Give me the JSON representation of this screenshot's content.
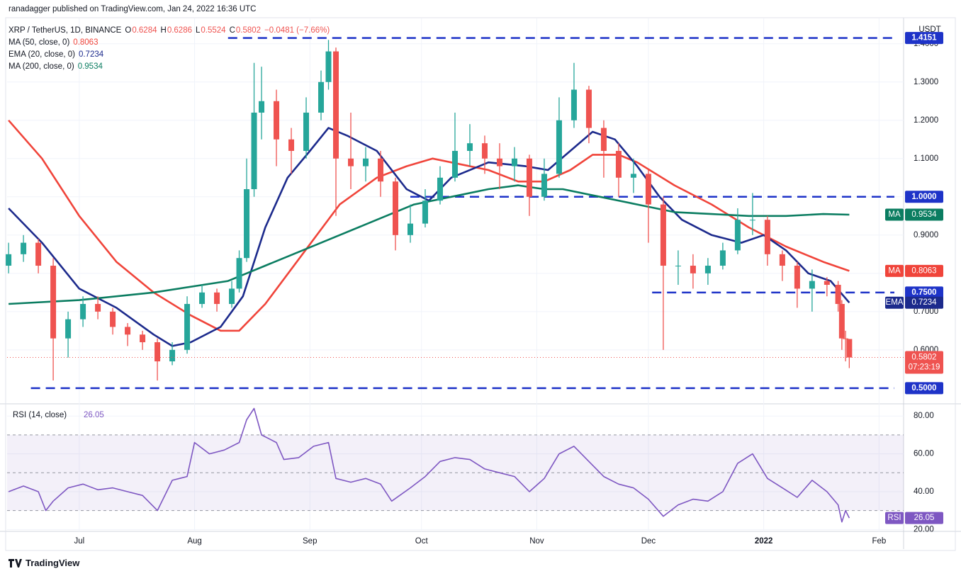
{
  "header": "ranadagger published on TradingView.com, Jan 24, 2022 16:36 UTC",
  "footer": "TradingView",
  "chart_data": [
    {
      "type": "candlestick",
      "title": "XRP / TetherUS, 1D, BINANCE",
      "ohlc_labels": [
        "O",
        "H",
        "L",
        "C"
      ],
      "change": "−0.0481 (−7.66%)",
      "currency": "USDT",
      "countdown": "07:23:19",
      "up_color": "#26a69a",
      "down_color": "#ef5350",
      "grid": true,
      "xlim": [
        -19.4,
        221.6
      ],
      "ylim": [
        0.459,
        1.431
      ],
      "xticks": [
        {
          "value": 0,
          "label": "Jul"
        },
        {
          "value": 31,
          "label": "Aug"
        },
        {
          "value": 62,
          "label": "Sep"
        },
        {
          "value": 92,
          "label": "Oct"
        },
        {
          "value": 123,
          "label": "Nov"
        },
        {
          "value": 153,
          "label": "Dec"
        },
        {
          "value": 184,
          "label": "2022"
        },
        {
          "value": 215,
          "label": "Feb"
        }
      ],
      "yticks": [
        {
          "value": 0.6,
          "label": "0.6000"
        },
        {
          "value": 0.7,
          "label": "0.7000"
        },
        {
          "value": 0.8,
          "label": "0.8000"
        },
        {
          "value": 0.9,
          "label": "0.9000"
        },
        {
          "value": 1.0,
          "label": "1.0000"
        },
        {
          "value": 1.1,
          "label": "1.1000"
        },
        {
          "value": 1.2,
          "label": "1.2000"
        },
        {
          "value": 1.3,
          "label": "1.3000"
        },
        {
          "value": 1.4,
          "label": "1.4000"
        }
      ],
      "x": [
        -19,
        -15,
        -11,
        -7,
        -3,
        1,
        5,
        9,
        13,
        17,
        21,
        25,
        29,
        33,
        37,
        41,
        43,
        45,
        47,
        49,
        53,
        57,
        61,
        65,
        67,
        69,
        73,
        77,
        81,
        85,
        89,
        93,
        97,
        101,
        105,
        109,
        113,
        117,
        121,
        125,
        129,
        133,
        137,
        141,
        145,
        149,
        153,
        157,
        161,
        165,
        169,
        173,
        177,
        181,
        185,
        189,
        193,
        197,
        201,
        204,
        205,
        206,
        207
      ],
      "open": [
        0.82,
        0.85,
        0.88,
        0.82,
        0.63,
        0.68,
        0.72,
        0.7,
        0.66,
        0.64,
        0.62,
        0.57,
        0.6,
        0.72,
        0.75,
        0.72,
        0.76,
        0.84,
        1.02,
        1.22,
        1.25,
        1.15,
        1.12,
        1.22,
        1.3,
        1.38,
        1.1,
        1.08,
        1.1,
        1.04,
        0.9,
        0.93,
        0.99,
        1.05,
        1.12,
        1.14,
        1.1,
        1.08,
        1.1,
        1.0,
        1.06,
        1.2,
        1.28,
        1.18,
        1.12,
        1.05,
        1.06,
        0.98,
        0.82,
        0.82,
        0.8,
        0.82,
        0.86,
        0.94,
        0.94,
        0.85,
        0.82,
        0.76,
        0.78,
        0.77,
        0.72,
        0.63,
        0.6284
      ],
      "high": [
        0.88,
        0.9,
        0.89,
        0.84,
        0.7,
        0.74,
        0.74,
        0.71,
        0.67,
        0.65,
        0.63,
        0.62,
        0.74,
        0.77,
        0.76,
        0.78,
        0.86,
        1.1,
        1.35,
        1.34,
        1.28,
        1.18,
        1.26,
        1.33,
        1.41,
        1.39,
        1.22,
        1.13,
        1.12,
        1.05,
        0.98,
        1.02,
        1.08,
        1.22,
        1.19,
        1.16,
        1.14,
        1.13,
        1.11,
        1.1,
        1.26,
        1.35,
        1.29,
        1.2,
        1.14,
        1.1,
        1.07,
        1.0,
        0.86,
        0.85,
        0.84,
        0.88,
        0.97,
        1.01,
        0.95,
        0.86,
        0.83,
        0.81,
        0.79,
        0.78,
        0.73,
        0.65,
        0.6286
      ],
      "low": [
        0.8,
        0.83,
        0.8,
        0.52,
        0.58,
        0.66,
        0.68,
        0.64,
        0.61,
        0.6,
        0.52,
        0.56,
        0.59,
        0.71,
        0.7,
        0.71,
        0.75,
        0.83,
        1.0,
        1.15,
        1.08,
        1.06,
        1.1,
        1.2,
        1.28,
        0.95,
        1.02,
        1.04,
        1.0,
        0.86,
        0.88,
        0.92,
        0.98,
        1.04,
        1.08,
        1.06,
        1.02,
        1.04,
        0.95,
        0.99,
        1.05,
        1.18,
        1.14,
        1.05,
        1.0,
        1.01,
        0.88,
        0.6,
        0.77,
        0.76,
        0.77,
        0.81,
        0.85,
        0.9,
        0.82,
        0.78,
        0.71,
        0.7,
        0.74,
        0.7,
        0.6,
        0.57,
        0.5524
      ],
      "close": [
        0.85,
        0.88,
        0.82,
        0.63,
        0.68,
        0.72,
        0.7,
        0.66,
        0.64,
        0.62,
        0.57,
        0.6,
        0.72,
        0.75,
        0.72,
        0.76,
        0.84,
        1.02,
        1.22,
        1.25,
        1.15,
        1.12,
        1.22,
        1.3,
        1.38,
        1.1,
        1.08,
        1.1,
        1.04,
        0.9,
        0.93,
        0.99,
        1.05,
        1.12,
        1.14,
        1.1,
        1.08,
        1.1,
        1.0,
        1.06,
        1.2,
        1.28,
        1.18,
        1.12,
        1.05,
        1.06,
        0.98,
        0.82,
        0.82,
        0.8,
        0.82,
        0.86,
        0.94,
        0.94,
        0.85,
        0.82,
        0.76,
        0.78,
        0.77,
        0.72,
        0.63,
        0.6284,
        0.5802
      ],
      "levels": [
        {
          "value": 1.4151,
          "label": "1.4151",
          "start": 40
        },
        {
          "value": 1.0,
          "label": "1.0000",
          "start": 89
        },
        {
          "value": 0.75,
          "label": "0.7500",
          "start": 154
        },
        {
          "value": 0.5,
          "label": "0.5000",
          "start": -13
        }
      ],
      "indicators": [
        {
          "name": "MA (50, close, 0)",
          "tag": "MA",
          "color": "#f0443a",
          "x": [
            -19,
            -10,
            0,
            10,
            20,
            30,
            38,
            43,
            50,
            60,
            70,
            80,
            88,
            95,
            100,
            110,
            118,
            125,
            132,
            138,
            145,
            150,
            160,
            170,
            180,
            190,
            200,
            207
          ],
          "values": [
            1.2,
            1.1,
            0.95,
            0.83,
            0.75,
            0.69,
            0.65,
            0.65,
            0.72,
            0.85,
            0.98,
            1.05,
            1.08,
            1.1,
            1.09,
            1.07,
            1.04,
            1.04,
            1.07,
            1.11,
            1.11,
            1.09,
            1.03,
            0.98,
            0.92,
            0.87,
            0.83,
            0.8063
          ]
        },
        {
          "name": "EMA (20, close, 0)",
          "tag": "EMA",
          "color": "#1c2a8c",
          "x": [
            -19,
            -10,
            0,
            10,
            20,
            25,
            30,
            38,
            44,
            50,
            56,
            62,
            67,
            72,
            80,
            88,
            94,
            100,
            110,
            120,
            126,
            132,
            138,
            144,
            150,
            156,
            162,
            170,
            178,
            184,
            190,
            196,
            202,
            207
          ],
          "values": [
            0.97,
            0.88,
            0.76,
            0.71,
            0.64,
            0.61,
            0.62,
            0.66,
            0.74,
            0.92,
            1.05,
            1.12,
            1.18,
            1.16,
            1.12,
            1.02,
            0.99,
            1.05,
            1.09,
            1.08,
            1.07,
            1.12,
            1.17,
            1.15,
            1.08,
            1.0,
            0.94,
            0.9,
            0.88,
            0.9,
            0.86,
            0.8,
            0.78,
            0.7234
          ]
        },
        {
          "name": "MA (200, close, 0)",
          "tag": "MA",
          "color": "#0b7d61",
          "x": [
            -19,
            0,
            20,
            40,
            50,
            60,
            70,
            80,
            90,
            100,
            110,
            118,
            125,
            130,
            140,
            150,
            160,
            170,
            180,
            190,
            200,
            207
          ],
          "values": [
            0.72,
            0.73,
            0.75,
            0.78,
            0.82,
            0.86,
            0.9,
            0.94,
            0.98,
            1.0,
            1.02,
            1.03,
            1.02,
            1.02,
            1.0,
            0.98,
            0.96,
            0.955,
            0.95,
            0.95,
            0.955,
            0.9534
          ]
        }
      ]
    },
    {
      "type": "line",
      "title": "RSI (14, close)",
      "tag": "RSI",
      "color": "#7e57c2",
      "xlim": [
        -19.4,
        221.6
      ],
      "ylim": [
        19,
        85.7
      ],
      "bands": [
        30,
        50,
        70
      ],
      "yticks": [
        {
          "value": 20,
          "label": "20.00"
        },
        {
          "value": 40,
          "label": "40.00"
        },
        {
          "value": 60,
          "label": "60.00"
        },
        {
          "value": 80,
          "label": "80.00"
        }
      ],
      "x": [
        -19,
        -15,
        -11,
        -9,
        -7,
        -3,
        1,
        5,
        9,
        13,
        17,
        21,
        25,
        29,
        31,
        35,
        39,
        43,
        45,
        47,
        49,
        53,
        55,
        59,
        63,
        67,
        69,
        73,
        77,
        81,
        84,
        89,
        93,
        97,
        101,
        105,
        109,
        113,
        117,
        121,
        125,
        129,
        133,
        137,
        141,
        145,
        149,
        153,
        157,
        161,
        165,
        169,
        173,
        177,
        181,
        185,
        189,
        193,
        197,
        201,
        204,
        205,
        206,
        207
      ],
      "values": [
        40,
        43,
        40,
        30,
        35,
        42,
        44,
        41,
        42,
        40,
        38,
        30,
        46,
        48,
        66,
        60,
        62,
        66,
        78,
        84,
        70,
        66,
        57,
        58,
        64,
        66,
        47,
        45,
        47,
        44,
        35,
        42,
        48,
        56,
        58,
        57,
        52,
        50,
        48,
        40,
        47,
        60,
        64,
        56,
        48,
        44,
        42,
        36,
        27,
        33,
        36,
        35,
        40,
        55,
        60,
        47,
        42,
        37,
        46,
        40,
        33,
        24,
        30,
        26.05
      ]
    }
  ]
}
